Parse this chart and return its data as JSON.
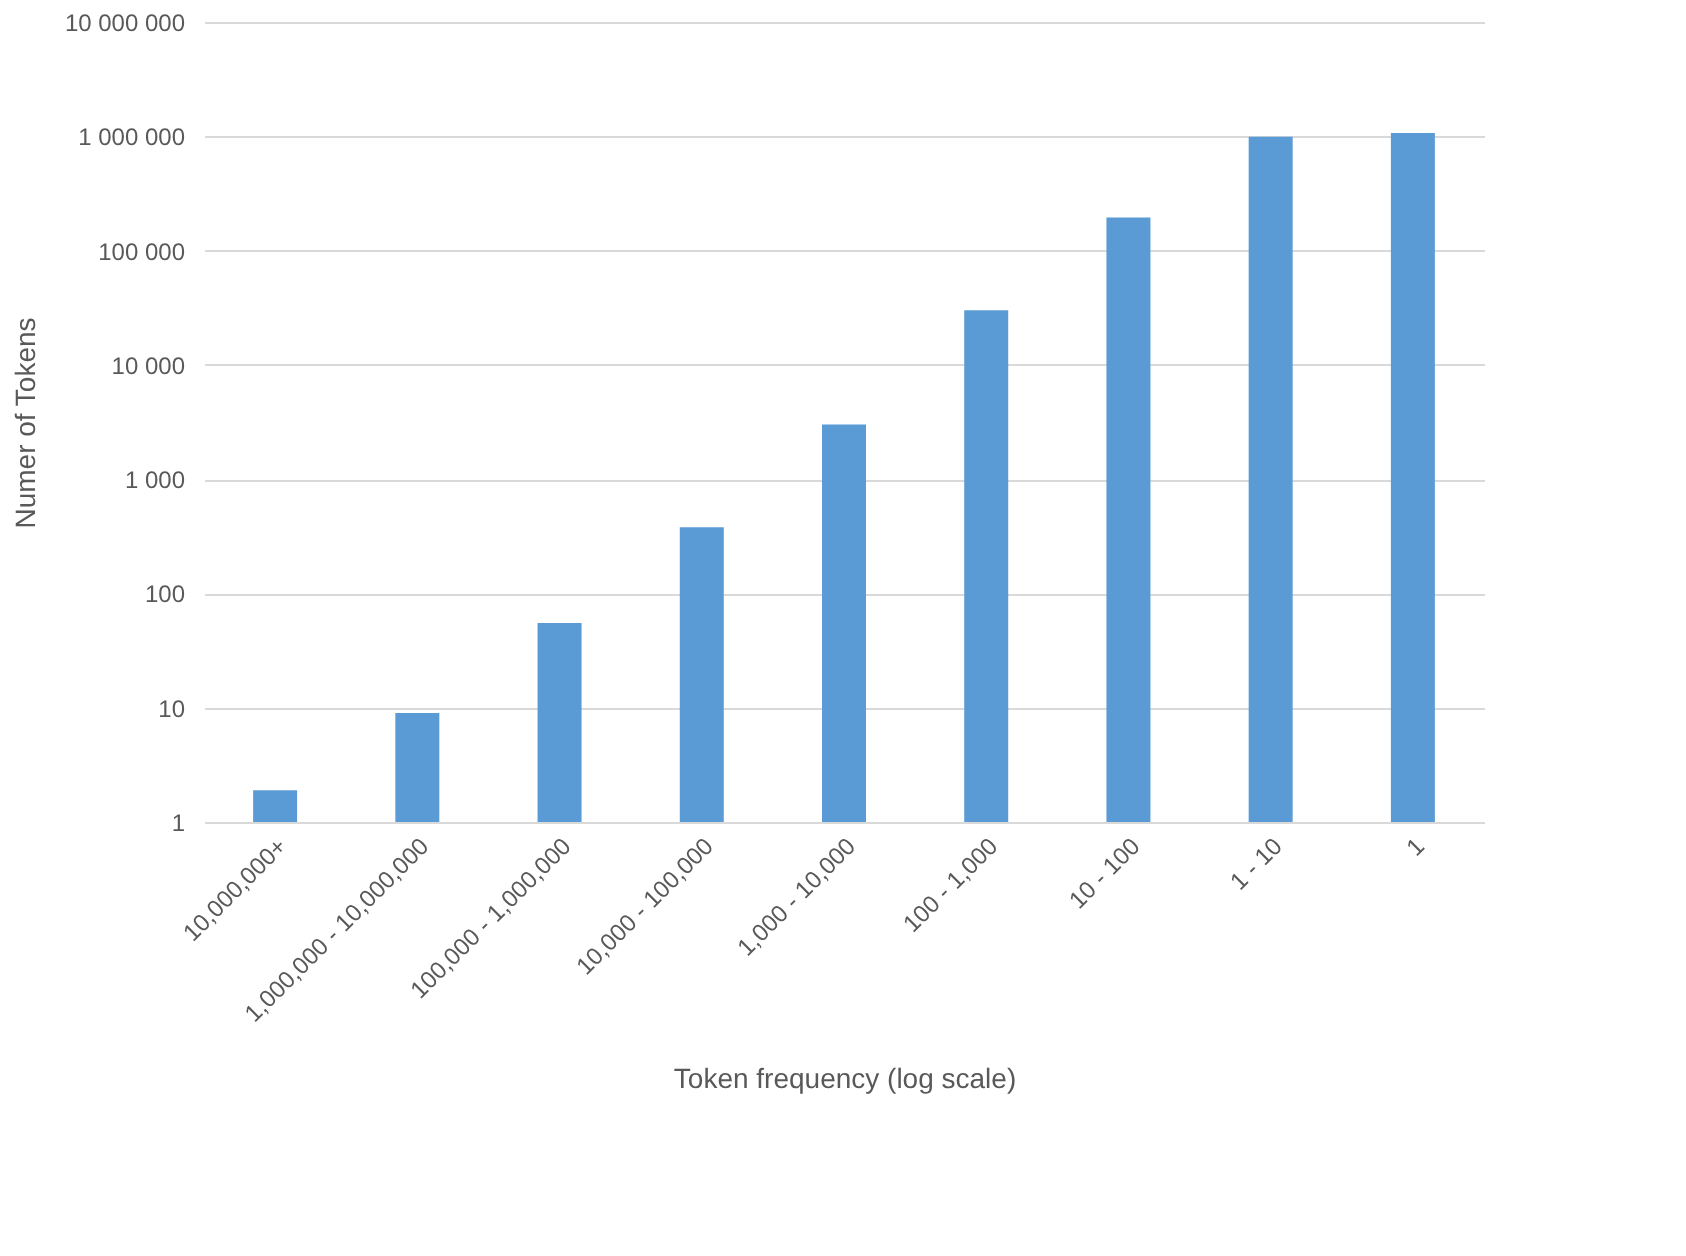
{
  "chart_data": {
    "type": "bar",
    "xlabel": "Token frequency (log scale)",
    "ylabel": "Numer of Tokens",
    "categories": [
      "10,000,000+",
      "1,000,000 - 10,000,000",
      "100,000 - 1,000,000",
      "10,000 - 100,000",
      "1,000 - 10,000",
      "100 - 1,000",
      "10 - 100",
      "1 - 10",
      "1"
    ],
    "values": [
      1.9,
      9,
      55,
      380,
      3000,
      30000,
      195000,
      990000,
      1070000
    ],
    "color": "#5b9bd5",
    "log": "y",
    "ylim": [
      1,
      10000000
    ],
    "yticks": [
      {
        "value": 1,
        "label": "1"
      },
      {
        "value": 10,
        "label": "10"
      },
      {
        "value": 100,
        "label": "100"
      },
      {
        "value": 1000,
        "label": "1 000"
      },
      {
        "value": 10000,
        "label": "10 000"
      },
      {
        "value": 100000,
        "label": "100 000"
      },
      {
        "value": 1000000,
        "label": "1 000 000"
      },
      {
        "value": 10000000,
        "label": "10 000 000"
      }
    ],
    "grid": "y"
  }
}
